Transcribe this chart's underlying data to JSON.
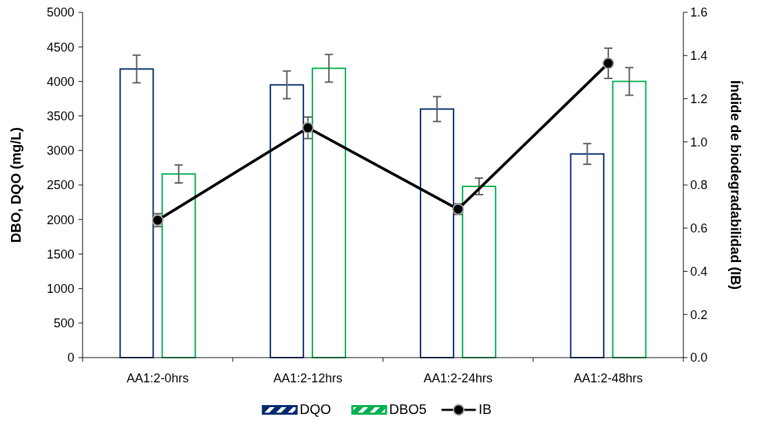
{
  "chart_data": {
    "type": "bar",
    "ylabel": "DBO, DQO (mg/L)",
    "y2label": "Índide de biodegradabilidad (IB)",
    "categories": [
      "AA1:2-0hrs",
      "AA1:2-12hrs",
      "AA1:2-24hrs",
      "AA1:2-48hrs"
    ],
    "series": [
      {
        "name": "DQO",
        "color": "#002a6e",
        "values": [
          4180,
          3950,
          3600,
          2950
        ],
        "errors": [
          200,
          200,
          180,
          150
        ]
      },
      {
        "name": "DBO5",
        "color": "#00b050",
        "values": [
          2660,
          4190,
          2480,
          4000
        ],
        "errors": [
          130,
          200,
          120,
          200
        ]
      },
      {
        "name": "IB",
        "type": "line",
        "axis": "y2",
        "color": "#000000",
        "marker": "circle",
        "values": [
          0.637,
          1.065,
          0.688,
          1.364
        ],
        "errors": [
          0.03,
          0.05,
          0.025,
          0.07
        ]
      }
    ],
    "ylim": [
      0,
      5000
    ],
    "yticks": [
      0,
      500,
      1000,
      1500,
      2000,
      2500,
      3000,
      3500,
      4000,
      4500,
      5000
    ],
    "y2lim": [
      0,
      1.6
    ],
    "y2ticks": [
      {
        "value": 0,
        "label": "0.0"
      },
      {
        "value": 0.2,
        "label": "0.2"
      },
      {
        "value": 0.4,
        "label": "0.4"
      },
      {
        "value": 0.6,
        "label": "0.6"
      },
      {
        "value": 0.8,
        "label": "0.8"
      },
      {
        "value": 1,
        "label": "1.0"
      },
      {
        "value": 1.2,
        "label": "1.2"
      },
      {
        "value": 1.4,
        "label": "1.4"
      },
      {
        "value": 1.6,
        "label": "1.6"
      }
    ],
    "grid": false,
    "legend": "bottom"
  }
}
